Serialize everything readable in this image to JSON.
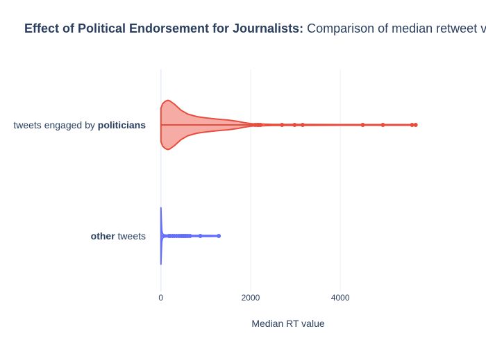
{
  "chart_data": {
    "type": "violin",
    "orientation": "horizontal",
    "title_bold": "Effect of Political Endorsement for Journalists:",
    "title_rest": " Comparison of median retweet value",
    "xlabel": "Median RT value",
    "xlim": [
      -120,
      5700
    ],
    "xticks": [
      0,
      2000,
      4000
    ],
    "grid": true,
    "categories": [
      {
        "prefix": "tweets engaged by ",
        "bold": "politicians",
        "suffix": ""
      },
      {
        "prefix": "",
        "bold": "other",
        "suffix": " tweets"
      }
    ],
    "series": [
      {
        "color": "#e74c3c",
        "fill": "#f6a8a0",
        "whisker_end": 2100,
        "profile": [
          [
            0,
            1.0
          ],
          [
            40,
            1.28
          ],
          [
            100,
            1.42
          ],
          [
            150,
            1.48
          ],
          [
            200,
            1.44
          ],
          [
            300,
            1.25
          ],
          [
            450,
            0.88
          ],
          [
            600,
            0.65
          ],
          [
            800,
            0.5
          ],
          [
            1000,
            0.42
          ],
          [
            1250,
            0.35
          ],
          [
            1500,
            0.29
          ],
          [
            1700,
            0.22
          ],
          [
            1850,
            0.14
          ],
          [
            2000,
            0.08
          ],
          [
            2100,
            0.06
          ],
          [
            2300,
            0.05
          ],
          [
            2500,
            0.03
          ],
          [
            2800,
            0.03
          ],
          [
            3100,
            0.03
          ],
          [
            3500,
            0.025
          ],
          [
            4000,
            0.02
          ],
          [
            4500,
            0.02
          ],
          [
            5000,
            0.02
          ],
          [
            5400,
            0.02
          ],
          [
            5680,
            0.015
          ]
        ],
        "outliers": [
          2100,
          2150,
          2180,
          2220,
          2700,
          2980,
          3160,
          4500,
          4950,
          5600,
          5680
        ]
      },
      {
        "color": "#636efa",
        "fill": "#636efa",
        "whisker_end": 130,
        "profile": [
          [
            0,
            1.7
          ],
          [
            10,
            1.0
          ],
          [
            20,
            0.35
          ],
          [
            35,
            0.14
          ],
          [
            60,
            0.08
          ],
          [
            100,
            0.06
          ],
          [
            160,
            0.05
          ],
          [
            220,
            0.05
          ],
          [
            300,
            0.04
          ],
          [
            380,
            0.045
          ],
          [
            450,
            0.05
          ],
          [
            520,
            0.05
          ],
          [
            600,
            0.04
          ],
          [
            700,
            0.03
          ],
          [
            900,
            0.03
          ],
          [
            1100,
            0.03
          ],
          [
            1300,
            0.02
          ]
        ],
        "outliers": [
          180,
          210,
          260,
          300,
          350,
          400,
          440,
          470,
          500,
          530,
          560,
          600,
          650,
          880,
          1290
        ]
      }
    ]
  }
}
